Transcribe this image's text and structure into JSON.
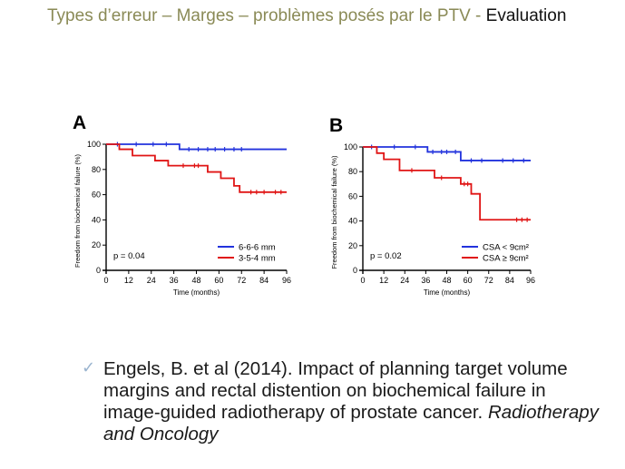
{
  "slide": {
    "title_muted": "Types d’erreur – Marges – problèmes posés par le PTV -",
    "title_strong": "Evaluation"
  },
  "colors": {
    "blue": "#2233dd",
    "red": "#e01515",
    "title_muted": "#8a8a56",
    "check": "#9ab4cf"
  },
  "reference": {
    "bullet_icon": "check-mark-icon",
    "text": "Engels, B. et al (2014). Impact of planning target volume margins and rectal distention on biochemical failure in image-guided radiotherapy of prostate cancer.",
    "journal": "Radiotherapy and Oncology"
  },
  "chart_data": [
    {
      "panel": "A",
      "type": "line",
      "step": true,
      "xlabel": "Time (months)",
      "ylabel": "Freedom from biochemical failure (%)",
      "xlim": [
        0,
        96
      ],
      "ylim": [
        0,
        100
      ],
      "xticks": [
        "0",
        "12",
        "24",
        "36",
        "48",
        "60",
        "72",
        "84",
        "96"
      ],
      "yticks": [
        "0",
        "20",
        "40",
        "60",
        "80",
        "100"
      ],
      "annotation": "p = 0.04",
      "legend_position": "bottom-right",
      "series": [
        {
          "name": "6-6-6 mm",
          "color": "#2233dd",
          "points": [
            [
              0,
              100
            ],
            [
              39,
              100
            ],
            [
              39,
              96
            ],
            [
              96,
              96
            ]
          ],
          "censor": [
            6,
            16,
            25,
            32,
            44,
            49,
            54,
            58,
            63,
            68,
            72
          ]
        },
        {
          "name": "3-5-4 mm",
          "color": "#e01515",
          "points": [
            [
              0,
              100
            ],
            [
              7,
              100
            ],
            [
              7,
              96
            ],
            [
              14,
              96
            ],
            [
              14,
              91
            ],
            [
              26,
              91
            ],
            [
              26,
              87
            ],
            [
              33,
              87
            ],
            [
              33,
              83
            ],
            [
              54,
              83
            ],
            [
              54,
              78
            ],
            [
              61,
              78
            ],
            [
              61,
              73
            ],
            [
              68,
              73
            ],
            [
              68,
              67
            ],
            [
              71,
              67
            ],
            [
              71,
              62
            ],
            [
              96,
              62
            ]
          ],
          "censor": [
            41,
            47,
            49,
            77,
            80,
            84,
            90,
            93
          ]
        }
      ]
    },
    {
      "panel": "B",
      "type": "line",
      "step": true,
      "xlabel": "Time (months)",
      "ylabel": "Freedom from biochemical failure (%)",
      "xlim": [
        0,
        96
      ],
      "ylim": [
        0,
        100
      ],
      "xticks": [
        "0",
        "12",
        "24",
        "36",
        "48",
        "60",
        "72",
        "84",
        "96"
      ],
      "yticks": [
        "0",
        "20",
        "40",
        "60",
        "80",
        "100"
      ],
      "annotation": "p = 0.02",
      "legend_position": "bottom-right",
      "series": [
        {
          "name": "CSA < 9cm²",
          "color": "#2233dd",
          "points": [
            [
              0,
              100
            ],
            [
              37,
              100
            ],
            [
              37,
              96
            ],
            [
              56,
              96
            ],
            [
              56,
              89
            ],
            [
              96,
              89
            ]
          ],
          "censor": [
            5,
            18,
            30,
            40,
            45,
            48,
            53,
            62,
            68,
            80,
            86,
            92
          ]
        },
        {
          "name": "CSA ≥ 9cm²",
          "color": "#e01515",
          "points": [
            [
              0,
              100
            ],
            [
              8,
              100
            ],
            [
              8,
              95
            ],
            [
              12,
              95
            ],
            [
              12,
              90
            ],
            [
              21,
              90
            ],
            [
              21,
              81
            ],
            [
              41,
              81
            ],
            [
              41,
              75
            ],
            [
              56,
              75
            ],
            [
              56,
              70
            ],
            [
              62,
              70
            ],
            [
              62,
              62
            ],
            [
              67,
              62
            ],
            [
              67,
              41
            ],
            [
              96,
              41
            ]
          ],
          "censor": [
            28,
            45,
            58,
            60,
            88,
            91,
            94
          ]
        }
      ]
    }
  ]
}
